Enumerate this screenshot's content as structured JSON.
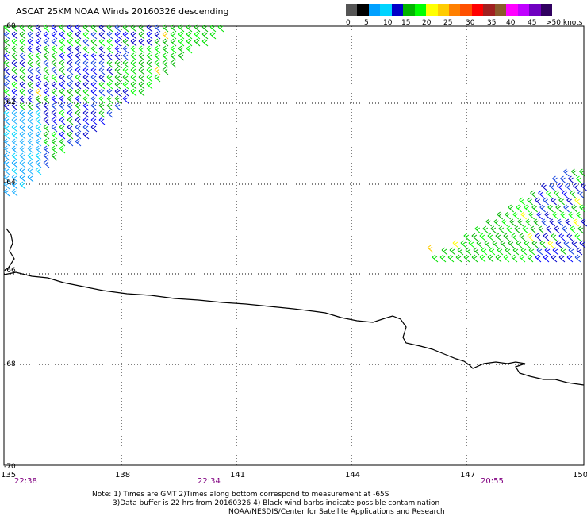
{
  "title": "ASCAT 25KM NOAA Winds 20160326 descending",
  "legend": {
    "colors": [
      "#555555",
      "#000000",
      "#00a0ff",
      "#00d4ff",
      "#0000c8",
      "#00b400",
      "#00ff00",
      "#ffff00",
      "#ffcc00",
      "#ff8000",
      "#ff5000",
      "#ff0000",
      "#a02020",
      "#8b5a2b",
      "#ff00ff",
      "#c000ff",
      "#7000c0",
      "#300060"
    ],
    "labels": [
      "0",
      "5",
      "10",
      "15",
      "20",
      "25",
      "30",
      "35",
      "40",
      "45",
      ">50 knots"
    ]
  },
  "axes": {
    "lat_labels": [
      "-60",
      "-62",
      "-64",
      "-66",
      "-68",
      "-70"
    ],
    "lon_labels": [
      "135",
      "138",
      "141",
      "144",
      "147",
      "150"
    ],
    "time_labels": [
      "22:38",
      "22:34",
      "20:55"
    ]
  },
  "notes": [
    "Note: 1) Times are GMT 2)Times along bottom correspond to measurement at -65S",
    "3)Data buffer is 22 hrs from 20160326 4) Black wind barbs indicate possible contamination"
  ],
  "credit": "NOAA/NESDIS/Center for Satellite Applications and Research"
}
